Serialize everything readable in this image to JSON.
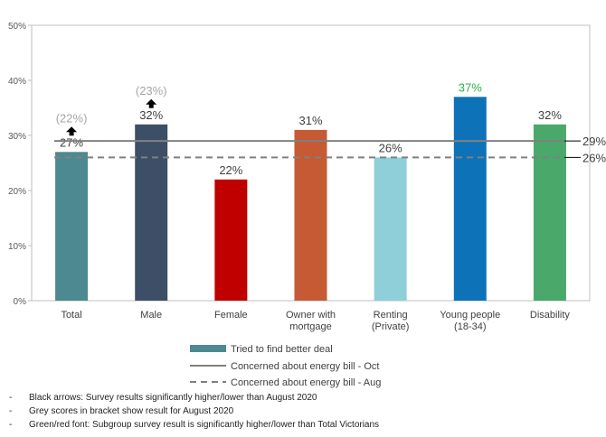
{
  "chart_data": {
    "type": "bar",
    "categories": [
      {
        "label": "Total",
        "label2": ""
      },
      {
        "label": "Male",
        "label2": ""
      },
      {
        "label": "Female",
        "label2": ""
      },
      {
        "label": "Owner with",
        "label2": "mortgage"
      },
      {
        "label": "Renting",
        "label2": "(Private)"
      },
      {
        "label": "Young people",
        "label2": "(18-34)"
      },
      {
        "label": "Disability",
        "label2": ""
      }
    ],
    "series": [
      {
        "name": "Tried to find better deal",
        "values": [
          27,
          32,
          22,
          31,
          26,
          37,
          32
        ],
        "value_labels": [
          "27%",
          "32%",
          "22%",
          "31%",
          "26%",
          "37%",
          "32%"
        ],
        "colors": [
          "#4d8990",
          "#3d4f67",
          "#c00000",
          "#c55a34",
          "#8ecfd9",
          "#0e72b8",
          "#4aa86a"
        ],
        "label_colors": [
          "#404040",
          "#404040",
          "#404040",
          "#404040",
          "#404040",
          "#2bb04b",
          "#404040"
        ]
      }
    ],
    "reference_lines": [
      {
        "name": "Concerned about energy bill - Oct",
        "value": 29,
        "label": "29%",
        "style": "solid",
        "color": "#808080"
      },
      {
        "name": "Concerned about energy bill - Aug",
        "value": 26,
        "label": "26%",
        "style": "dashed",
        "color": "#808080"
      }
    ],
    "august_scores": [
      {
        "category_index": 0,
        "label": "(22%)",
        "arrow": "up"
      },
      {
        "category_index": 1,
        "label": "(23%)",
        "arrow": "up"
      }
    ],
    "y_axis": {
      "min": 0,
      "max": 50,
      "step": 10,
      "tick_labels": [
        "0%",
        "10%",
        "20%",
        "30%",
        "40%",
        "50%"
      ]
    },
    "legend_position": "bottom",
    "grid": false
  },
  "notes": [
    "Black arrows: Survey results significantly higher/lower than August 2020",
    "Grey scores in bracket show result for August 2020",
    "Green/red font: Subgroup survey result is significantly higher/lower than Total Victorians"
  ]
}
